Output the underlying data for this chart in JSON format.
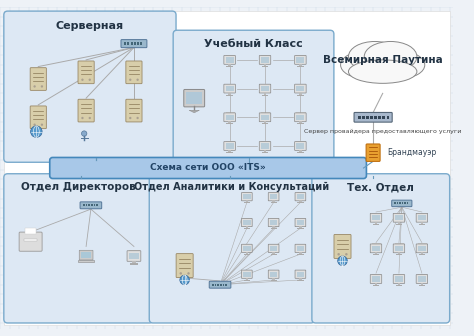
{
  "bg_color": "#eef2f7",
  "grid_color": "#c5d5e5",
  "box_fill": "#dde8f4",
  "box_edge": "#7aaacc",
  "box_fill_dark": "#c8ddf0",
  "central_fill": "#a8c8e8",
  "central_edge": "#4488bb",
  "cloud_fill": "#f8f8f8",
  "cloud_edge": "#888888",
  "firewall_fill": "#e8a030",
  "firewall_edge": "#c07010",
  "title_main": "Схема сети ООО «ITS»",
  "box_servernaya": "Серверная",
  "box_uchebny": "Учебный Класс",
  "box_vsemirnaya": "Всемирная Паутина",
  "box_direktory": "Отдел Директоров",
  "box_analitika": "Отдел Аналитики и Консультаций",
  "box_teh": "Тех. Отдел",
  "label_server_provider": "Сервер провайдера предоставляющего услуги",
  "label_brandmauer": "Брандмауэр",
  "server_color": "#d8ceaa",
  "server_edge": "#998866",
  "switch_fill": "#9ab8cc",
  "switch_edge": "#557799",
  "monitor_fill": "#dde8ee",
  "monitor_edge": "#778899",
  "line_color": "#6699bb",
  "gray_line": "#aaaaaa"
}
